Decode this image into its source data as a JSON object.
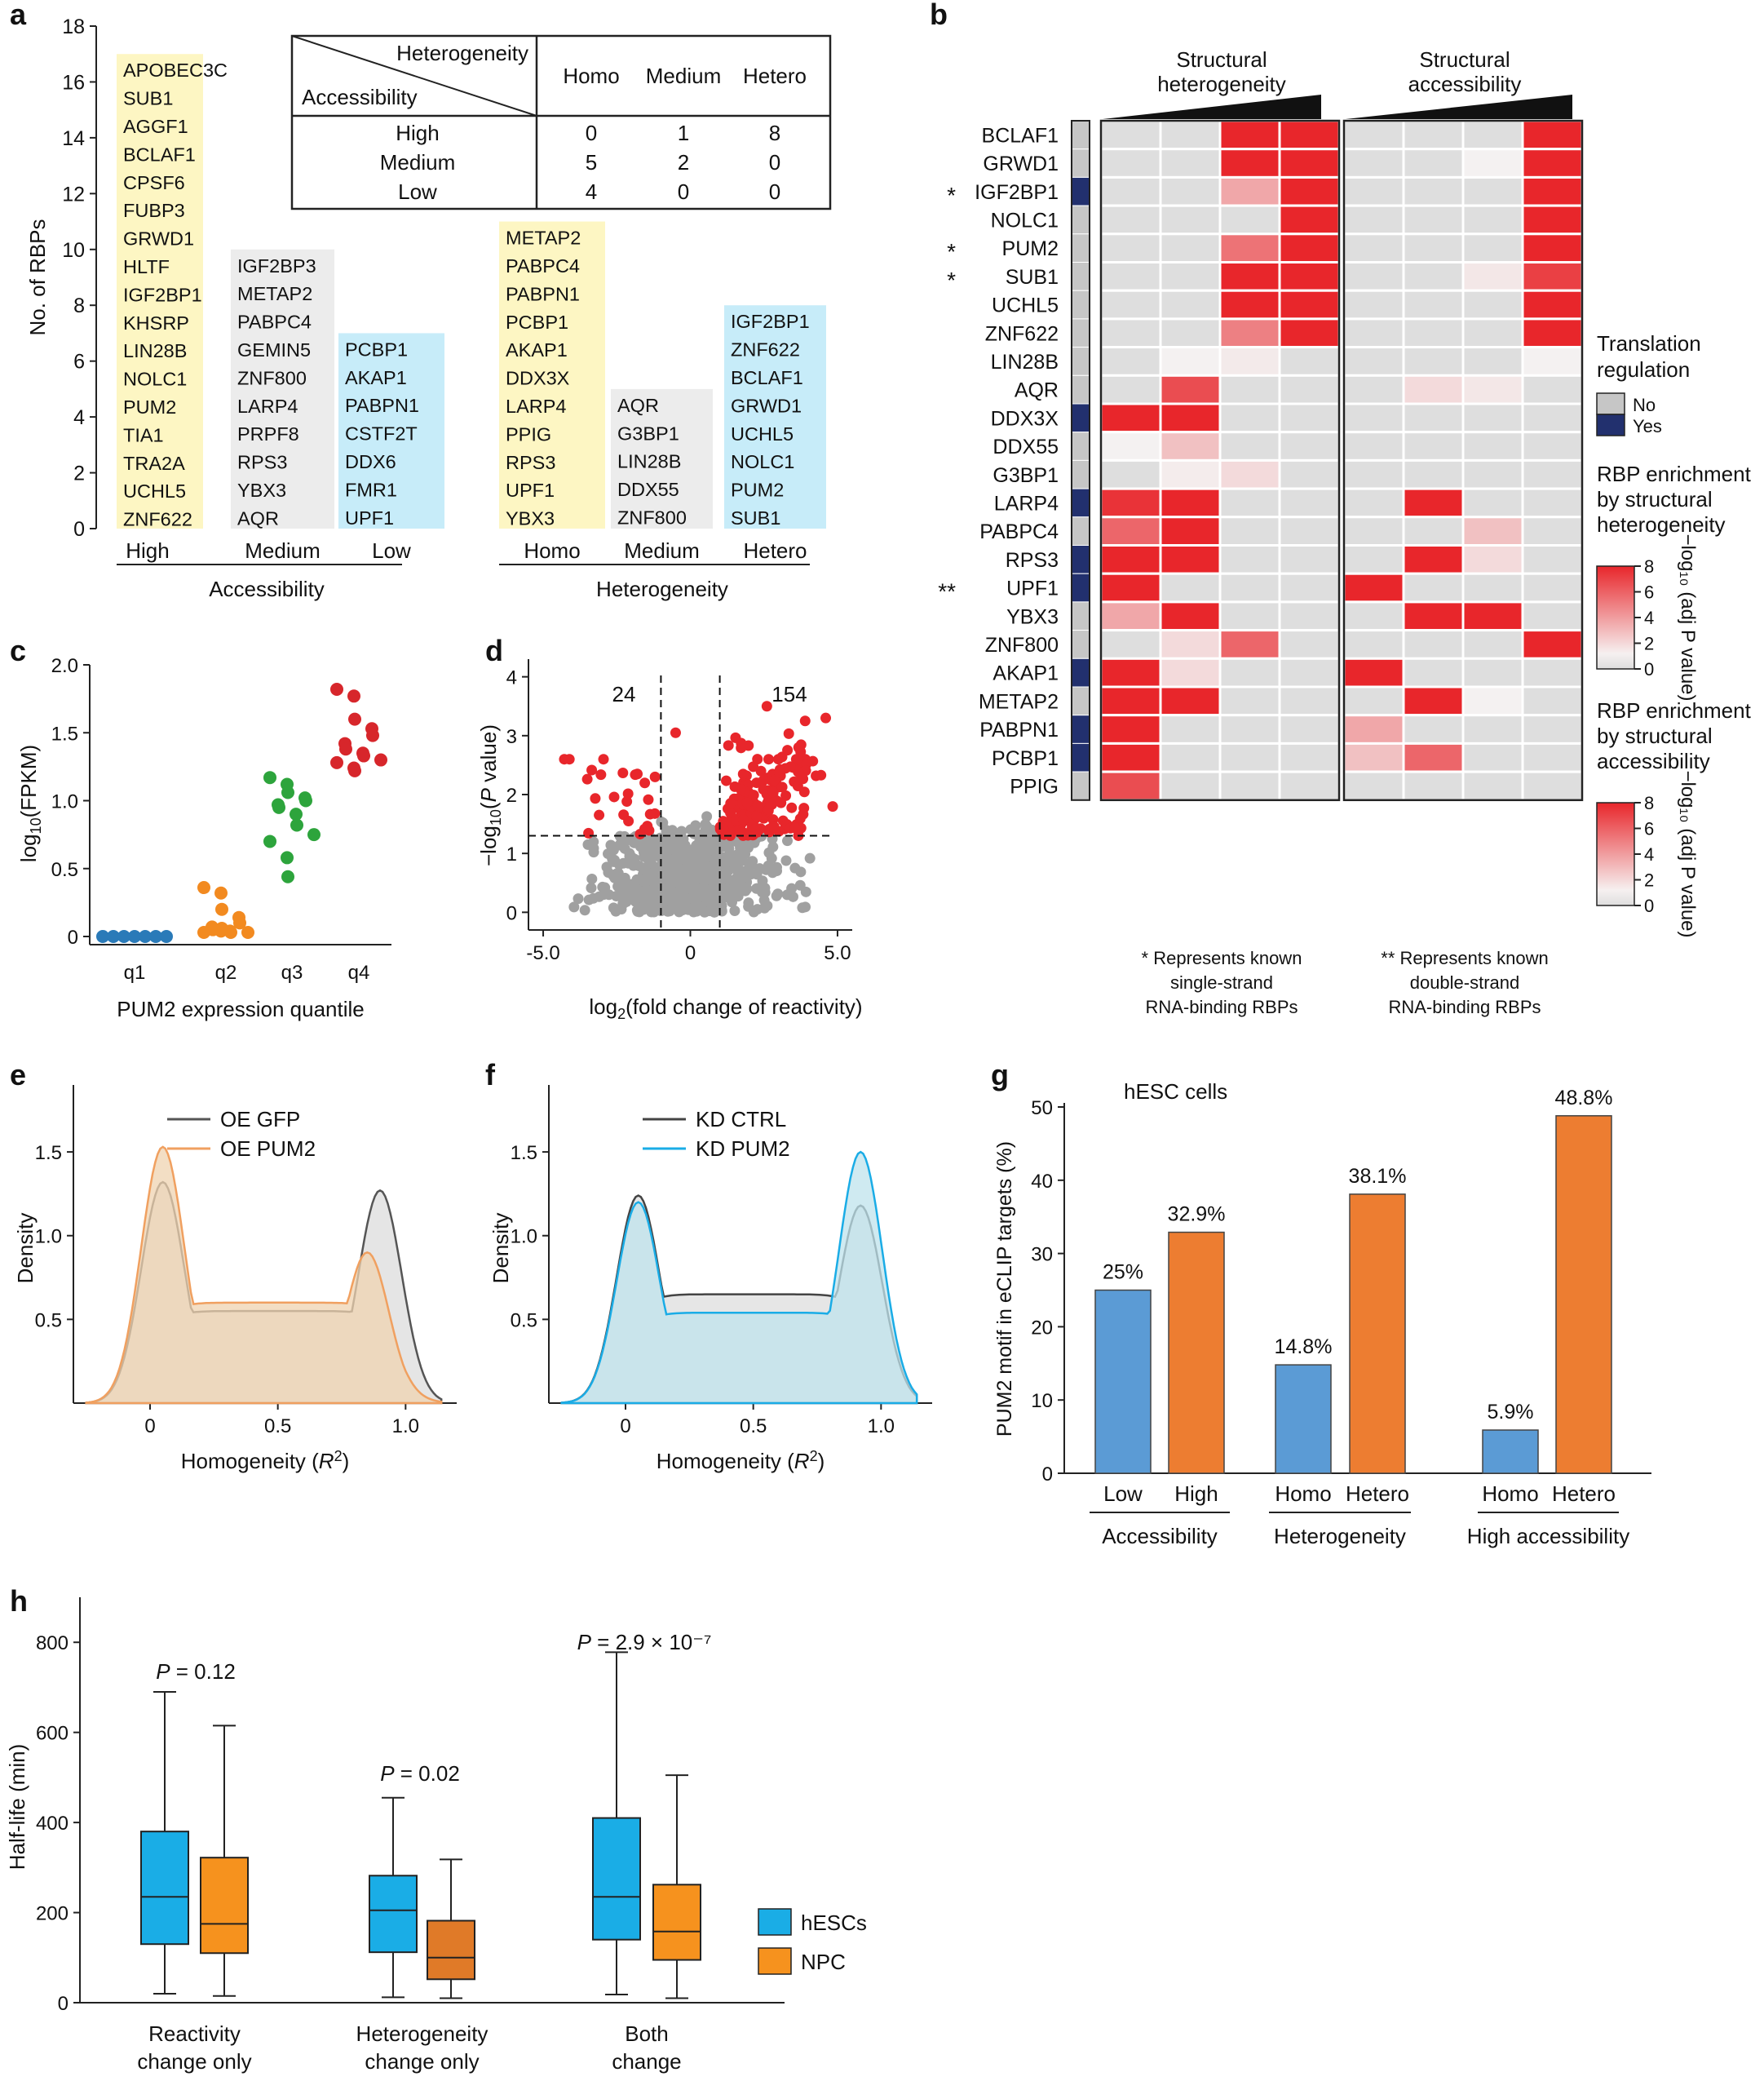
{
  "panel_labels": [
    "a",
    "b",
    "c",
    "d",
    "e",
    "f",
    "g",
    "h"
  ],
  "colors": {
    "red": "#e8262b",
    "orange_text": "#e8603c",
    "green_text": "#1aa35a",
    "yellow_box": "#fdf6c3",
    "grey_box": "#ececec",
    "blue_box": "#c7ecf9",
    "navy": "#22306e",
    "grey_bar": "#c6c6c6",
    "blue_bar": "#5b9bd5",
    "orange_bar": "#ed7d31",
    "hesc_blue": "#1aade6",
    "npc_orange": "#f6921e",
    "q1": "#2a7ab8",
    "q2": "#f28a20",
    "q3": "#2da43c",
    "q4": "#d7262b",
    "scatter_grey": "#a0a0a0"
  },
  "panel_a": {
    "ylabel": "No. of RBPs",
    "yticks": [
      "0",
      "2",
      "4",
      "6",
      "8",
      "10",
      "12",
      "14",
      "16",
      "18"
    ],
    "groups": [
      {
        "label": "High",
        "box": "yellow",
        "items": [
          {
            "t": "APOBEC3C",
            "c": "k"
          },
          {
            "t": "SUB1",
            "c": "o"
          },
          {
            "t": "AGGF1",
            "c": "k"
          },
          {
            "t": "BCLAF1",
            "c": "o"
          },
          {
            "t": "CPSF6",
            "c": "k"
          },
          {
            "t": "FUBP3",
            "c": "k"
          },
          {
            "t": "GRWD1",
            "c": "o"
          },
          {
            "t": "HLTF",
            "c": "k"
          },
          {
            "t": "IGF2BP1",
            "c": "o"
          },
          {
            "t": "KHSRP",
            "c": "k"
          },
          {
            "t": "LIN28B",
            "c": "k"
          },
          {
            "t": "NOLC1",
            "c": "o"
          },
          {
            "t": "PUM2",
            "c": "o"
          },
          {
            "t": "TIA1",
            "c": "k"
          },
          {
            "t": "TRA2A",
            "c": "k"
          },
          {
            "t": "UCHL5",
            "c": "o"
          },
          {
            "t": "ZNF622",
            "c": "o"
          }
        ]
      },
      {
        "label": "Medium",
        "box": "grey",
        "items": [
          {
            "t": "IGF2BP3",
            "c": "k"
          },
          {
            "t": "METAP2",
            "c": "k"
          },
          {
            "t": "PABPC4",
            "c": "k"
          },
          {
            "t": "GEMIN5",
            "c": "k"
          },
          {
            "t": "ZNF800",
            "c": "k"
          },
          {
            "t": "LARP4",
            "c": "k"
          },
          {
            "t": "PRPF8",
            "c": "k"
          },
          {
            "t": "RPS3",
            "c": "k"
          },
          {
            "t": "YBX3",
            "c": "k"
          },
          {
            "t": "AQR",
            "c": "k"
          }
        ]
      },
      {
        "label": "Low",
        "box": "blue",
        "items": [
          {
            "t": "PCBP1",
            "c": "g"
          },
          {
            "t": "AKAP1",
            "c": "g"
          },
          {
            "t": "PABPN1",
            "c": "g"
          },
          {
            "t": "CSTF2T",
            "c": "k"
          },
          {
            "t": "DDX6",
            "c": "k"
          },
          {
            "t": "FMR1",
            "c": "k"
          },
          {
            "t": "UPF1",
            "c": "g"
          }
        ]
      },
      {
        "label": "Homo",
        "box": "yellow",
        "items": [
          {
            "t": "METAP2",
            "c": "k"
          },
          {
            "t": "PABPC4",
            "c": "k"
          },
          {
            "t": "PABPN1",
            "c": "g"
          },
          {
            "t": "PCBP1",
            "c": "g"
          },
          {
            "t": "AKAP1",
            "c": "g"
          },
          {
            "t": "DDX3X",
            "c": "k"
          },
          {
            "t": "LARP4",
            "c": "k"
          },
          {
            "t": "PPIG",
            "c": "k"
          },
          {
            "t": "RPS3",
            "c": "k"
          },
          {
            "t": "UPF1",
            "c": "g"
          },
          {
            "t": "YBX3",
            "c": "k"
          }
        ]
      },
      {
        "label": "Medium",
        "box": "grey",
        "items": [
          {
            "t": "AQR",
            "c": "k"
          },
          {
            "t": "G3BP1",
            "c": "k"
          },
          {
            "t": "LIN28B",
            "c": "k"
          },
          {
            "t": "DDX55",
            "c": "k"
          },
          {
            "t": "ZNF800",
            "c": "k"
          }
        ]
      },
      {
        "label": "Hetero",
        "box": "blue",
        "items": [
          {
            "t": "IGF2BP1",
            "c": "o"
          },
          {
            "t": "ZNF622",
            "c": "o"
          },
          {
            "t": "BCLAF1",
            "c": "o"
          },
          {
            "t": "GRWD1",
            "c": "o"
          },
          {
            "t": "UCHL5",
            "c": "o"
          },
          {
            "t": "NOLC1",
            "c": "o"
          },
          {
            "t": "PUM2",
            "c": "o"
          },
          {
            "t": "SUB1",
            "c": "o"
          }
        ]
      }
    ],
    "group_titles": [
      "Accessibility",
      "Heterogeneity"
    ],
    "table": {
      "col_header": "Heterogeneity",
      "row_header": "Accessibility",
      "cols": [
        "Homo",
        "Medium",
        "Hetero"
      ],
      "rows": [
        {
          "label": "High",
          "values": [
            "0",
            "1",
            "8"
          ]
        },
        {
          "label": "Medium",
          "values": [
            "5",
            "2",
            "0"
          ]
        },
        {
          "label": "Low",
          "values": [
            "4",
            "0",
            "0"
          ]
        }
      ]
    }
  },
  "panel_b": {
    "header_left": [
      "Structural",
      "heterogeneity"
    ],
    "header_right": [
      "Structural",
      "accessibility"
    ],
    "genes": [
      "BCLAF1",
      "GRWD1",
      "IGF2BP1",
      "NOLC1",
      "PUM2",
      "SUB1",
      "UCHL5",
      "ZNF622",
      "LIN28B",
      "AQR",
      "DDX3X",
      "DDX55",
      "G3BP1",
      "LARP4",
      "PABPC4",
      "RPS3",
      "UPF1",
      "YBX3",
      "ZNF800",
      "AKAP1",
      "METAP2",
      "PABPN1",
      "PCBP1",
      "PPIG"
    ],
    "stars": [
      "",
      "",
      "*",
      "",
      "*",
      "*",
      "",
      "",
      "",
      "",
      "",
      "",
      "",
      "",
      "",
      "",
      "**",
      "",
      "",
      "",
      "",
      "",
      "",
      ""
    ],
    "translation": [
      0,
      0,
      1,
      0,
      0,
      0,
      0,
      0,
      0,
      0,
      1,
      0,
      0,
      1,
      0,
      1,
      1,
      0,
      0,
      1,
      0,
      1,
      1,
      0
    ],
    "het_values": [
      [
        0,
        0,
        8,
        8
      ],
      [
        0,
        0,
        8,
        8
      ],
      [
        0,
        0,
        3,
        8
      ],
      [
        0,
        0,
        0,
        8
      ],
      [
        0,
        0,
        5,
        8
      ],
      [
        0,
        0,
        8,
        8
      ],
      [
        0,
        0,
        8,
        8
      ],
      [
        0,
        0,
        4.5,
        8
      ],
      [
        0,
        0.1,
        0.4,
        0
      ],
      [
        0,
        6.5,
        0,
        0
      ],
      [
        8,
        8,
        0,
        0
      ],
      [
        0.1,
        2,
        0,
        0
      ],
      [
        0,
        0.3,
        1,
        0
      ],
      [
        7.5,
        8,
        0,
        0
      ],
      [
        5.5,
        8,
        0,
        0
      ],
      [
        8,
        8,
        0,
        0
      ],
      [
        8,
        0,
        0,
        0
      ],
      [
        3,
        8,
        0,
        0
      ],
      [
        0,
        1,
        5.5,
        0
      ],
      [
        8,
        1,
        0,
        0
      ],
      [
        8,
        8,
        0,
        0
      ],
      [
        8,
        0,
        0,
        0
      ],
      [
        8,
        0,
        0,
        0
      ],
      [
        6.5,
        0,
        0,
        0
      ]
    ],
    "acc_values": [
      [
        0,
        0,
        0,
        8
      ],
      [
        0,
        0,
        0.1,
        8
      ],
      [
        0,
        0,
        0,
        8
      ],
      [
        0,
        0,
        0,
        8
      ],
      [
        0,
        0,
        0,
        8
      ],
      [
        0,
        0,
        0.5,
        7
      ],
      [
        0,
        0,
        0,
        8
      ],
      [
        0,
        0,
        0,
        8
      ],
      [
        0,
        0,
        0,
        0.1
      ],
      [
        0,
        1,
        0.5,
        0
      ],
      [
        0,
        0,
        0,
        0
      ],
      [
        0,
        0,
        0,
        0
      ],
      [
        0,
        0,
        0,
        0
      ],
      [
        0,
        8,
        0,
        0
      ],
      [
        0,
        0,
        2,
        0
      ],
      [
        0,
        8,
        1,
        0
      ],
      [
        8,
        0,
        0,
        0
      ],
      [
        0,
        8,
        8,
        0
      ],
      [
        0,
        0,
        0,
        8
      ],
      [
        8,
        0,
        0,
        0
      ],
      [
        0,
        8,
        0.1,
        0
      ],
      [
        3,
        0,
        0,
        0
      ],
      [
        2,
        5.5,
        0,
        0
      ],
      [
        0,
        0,
        0,
        0
      ]
    ],
    "legend": {
      "translation_title": [
        "Translation",
        "regulation"
      ],
      "no": "No",
      "yes": "Yes",
      "het_title": [
        "RBP enrichment",
        "by structural",
        "heterogeneity"
      ],
      "acc_title": [
        "RBP enrichment",
        "by structural",
        "accessibility"
      ],
      "scale_ticks": [
        "8",
        "6",
        "4",
        "2",
        "0"
      ],
      "scale_label": "−log₁₀ (adj P value)"
    },
    "footnote_left": [
      "* Represents known",
      "single-strand",
      "RNA-binding RBPs"
    ],
    "footnote_right": [
      "** Represents known",
      "double-strand",
      "RNA-binding RBPs"
    ]
  },
  "panel_c": {
    "chart_data": {
      "type": "scatter",
      "ylabel": "log10(FPKM)",
      "xlabel": "PUM2 expression quantile",
      "categories": [
        "q1",
        "q2",
        "q3",
        "q4"
      ],
      "ylim": [
        0,
        2.0
      ],
      "yticks": [
        "0",
        "0.5",
        "1.0",
        "1.5",
        "2.0"
      ],
      "values": [
        [
          0,
          0,
          0,
          0,
          0,
          0,
          0
        ],
        [
          0.36,
          0.32,
          0.2,
          0.14,
          0.1,
          0.07,
          0.05,
          0.04,
          0.03,
          0.03,
          0.03,
          0.04,
          0.06
        ],
        [
          1.17,
          1.12,
          1.06,
          1.02,
          1.0,
          0.97,
          0.95,
          0.9,
          0.82,
          0.75,
          0.7,
          0.58,
          0.44
        ],
        [
          1.82,
          1.77,
          1.6,
          1.53,
          1.48,
          1.42,
          1.38,
          1.35,
          1.33,
          1.3,
          1.28,
          1.24,
          1.22
        ]
      ]
    }
  },
  "panel_d": {
    "chart_data": {
      "type": "scatter",
      "xlabel": "log2(fold change of reactivity)",
      "ylabel": "−log10(P value)",
      "xlim": [
        -5.5,
        5.5
      ],
      "ylim": [
        -0.3,
        4.3
      ],
      "xticks": [
        "-5.0",
        "0",
        "5.0"
      ],
      "yticks": [
        "0",
        "1",
        "2",
        "3",
        "4"
      ],
      "count_down": "24",
      "count_up": "154",
      "thresholds": {
        "x": [
          -1,
          1
        ],
        "y": 1.3
      }
    }
  },
  "panel_e": {
    "chart_data": {
      "type": "area",
      "xlabel": "Homogeneity (R2)",
      "ylabel": "Density",
      "xlim": [
        -0.3,
        1.2
      ],
      "ylim": [
        0,
        1.9
      ],
      "xticks": [
        "0",
        "0.5",
        "1.0"
      ],
      "yticks": [
        "0.5",
        "1.0",
        "1.5"
      ],
      "series": [
        {
          "name": "OE GFP",
          "color": "#555555",
          "fill": "#dcdcdc",
          "peaks": [
            [
              0.05,
              1.32
            ],
            [
              0.9,
              1.27
            ]
          ],
          "mid": 0.55
        },
        {
          "name": "OE PUM2",
          "color": "#f0a060",
          "fill": "#efd3b0",
          "peaks": [
            [
              0.05,
              1.53
            ],
            [
              0.85,
              0.9
            ]
          ],
          "mid": 0.6
        }
      ]
    }
  },
  "panel_f": {
    "chart_data": {
      "type": "area",
      "xlabel": "Homogeneity (R2)",
      "ylabel": "Density",
      "xlim": [
        -0.3,
        1.2
      ],
      "ylim": [
        0,
        1.9
      ],
      "xticks": [
        "0",
        "0.5",
        "1.0"
      ],
      "yticks": [
        "0.5",
        "1.0",
        "1.5"
      ],
      "series": [
        {
          "name": "KD CTRL",
          "color": "#444444",
          "fill": "#dddddd",
          "peaks": [
            [
              0.05,
              1.24
            ],
            [
              0.92,
              1.18
            ]
          ],
          "mid": 0.65
        },
        {
          "name": "KD PUM2",
          "color": "#1aace6",
          "fill": "#bfe3ec",
          "peaks": [
            [
              0.05,
              1.2
            ],
            [
              0.92,
              1.5
            ]
          ],
          "mid": 0.54
        }
      ]
    }
  },
  "panel_g": {
    "chart_data": {
      "type": "bar",
      "title": "hESC cells",
      "ylabel": "PUM2 motif in eCLIP targets (%)",
      "ylim": [
        0,
        50
      ],
      "yticks": [
        "0",
        "10",
        "20",
        "30",
        "40",
        "50"
      ],
      "bars": [
        {
          "label": "Low",
          "value": 25,
          "text": "25%",
          "color": "blue"
        },
        {
          "label": "High",
          "value": 32.9,
          "text": "32.9%",
          "color": "orange"
        },
        {
          "label": "Homo",
          "value": 14.8,
          "text": "14.8%",
          "color": "blue"
        },
        {
          "label": "Hetero",
          "value": 38.1,
          "text": "38.1%",
          "color": "orange"
        },
        {
          "label": "Homo",
          "value": 5.9,
          "text": "5.9%",
          "color": "blue"
        },
        {
          "label": "Hetero",
          "value": 48.8,
          "text": "48.8%",
          "color": "orange"
        }
      ],
      "groups": [
        "Accessibility",
        "Heterogeneity",
        "High accessibility"
      ]
    }
  },
  "panel_h": {
    "chart_data": {
      "type": "box",
      "ylabel": "Half-life (min)",
      "ylim": [
        0,
        900
      ],
      "yticks": [
        "0",
        "200",
        "400",
        "600",
        "800"
      ],
      "groups": [
        {
          "label": [
            "Reactivity",
            "change only"
          ],
          "pvalue": "P = 0.12",
          "hesc": {
            "min": 20,
            "q1": 130,
            "med": 235,
            "q3": 380,
            "max": 690
          },
          "npc": {
            "min": 15,
            "q1": 110,
            "med": 175,
            "q3": 322,
            "max": 615
          }
        },
        {
          "label": [
            "Heterogeneity",
            "change only"
          ],
          "pvalue": "P = 0.02",
          "hesc": {
            "min": 12,
            "q1": 112,
            "med": 205,
            "q3": 282,
            "max": 455
          },
          "npc": {
            "min": 10,
            "q1": 52,
            "med": 100,
            "q3": 182,
            "max": 318
          }
        },
        {
          "label": [
            "Both",
            "change"
          ],
          "pvalue": "P = 2.9 × 10⁻⁷",
          "hesc": {
            "min": 18,
            "q1": 140,
            "med": 235,
            "q3": 410,
            "max": 778
          },
          "npc": {
            "min": 10,
            "q1": 95,
            "med": 158,
            "q3": 262,
            "max": 505
          }
        }
      ],
      "legend": [
        "hESCs",
        "NPC"
      ]
    }
  }
}
